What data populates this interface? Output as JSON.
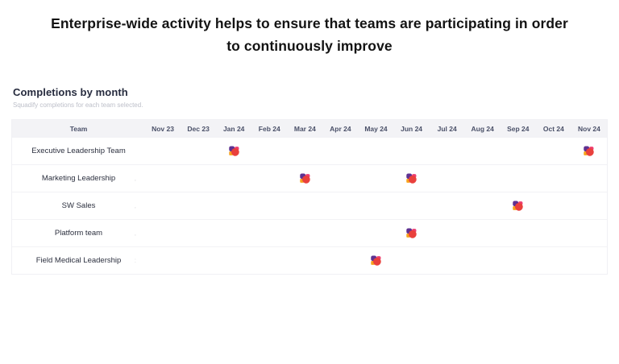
{
  "page": {
    "background": "#ffffff",
    "title_lines": [
      "Enterprise-wide activity helps to ensure that teams are participating in order",
      "to continuously improve"
    ]
  },
  "section": {
    "title": "Completions by month",
    "subtitle": "Squadify completions for each team selected."
  },
  "table": {
    "team_header": "Team",
    "months": [
      "Nov 23",
      "Dec 23",
      "Jan 24",
      "Feb 24",
      "Mar 24",
      "Apr 24",
      "May 24",
      "Jun 24",
      "Jul 24",
      "Aug 24",
      "Sep 24",
      "Oct 24",
      "Nov 24"
    ],
    "rows": [
      {
        "team": "Executive Leadership Team",
        "completions": [
          "Jan 24",
          "Nov 24"
        ],
        "mark": ""
      },
      {
        "team": "Marketing Leadership",
        "completions": [
          "Mar 24",
          "Jun 24"
        ],
        "mark": ","
      },
      {
        "team": "SW Sales",
        "completions": [
          "Sep 24"
        ],
        "mark": ","
      },
      {
        "team": "Platform team",
        "completions": [
          "Jun 24"
        ],
        "mark": ","
      },
      {
        "team": "Field Medical Leadership",
        "completions": [
          "May 24"
        ],
        "mark": ":"
      }
    ]
  },
  "logo": {
    "name": "squadify-logo",
    "colors": {
      "purple": "#5e3191",
      "pink": "#ee3d6f",
      "orange": "#f7a31c",
      "red": "#e9403c"
    }
  },
  "colors": {
    "header_row_bg": "#f3f3f6",
    "header_text": "#4a5068",
    "row_border": "#f2f2f5",
    "title_text": "#131313",
    "section_title_text": "#262b3e",
    "subtitle_text": "#bdbfc9"
  },
  "chart_data": {
    "type": "table",
    "title": "Completions by month",
    "subtitle": "Squadify completions for each team selected.",
    "columns": [
      "Team",
      "Nov 23",
      "Dec 23",
      "Jan 24",
      "Feb 24",
      "Mar 24",
      "Apr 24",
      "May 24",
      "Jun 24",
      "Jul 24",
      "Aug 24",
      "Sep 24",
      "Oct 24",
      "Nov 24"
    ],
    "marker": "squadify-logo-icon",
    "rows": [
      {
        "team": "Executive Leadership Team",
        "completed_months": [
          "Jan 24",
          "Nov 24"
        ]
      },
      {
        "team": "Marketing Leadership",
        "completed_months": [
          "Mar 24",
          "Jun 24"
        ]
      },
      {
        "team": "SW Sales",
        "completed_months": [
          "Sep 24"
        ]
      },
      {
        "team": "Platform team",
        "completed_months": [
          "Jun 24"
        ]
      },
      {
        "team": "Field Medical Leadership",
        "completed_months": [
          "May 24"
        ]
      }
    ],
    "layout": {
      "grid": "off",
      "legend": "none",
      "marker_meaning": "team completed a Squadify completion in that month"
    }
  }
}
